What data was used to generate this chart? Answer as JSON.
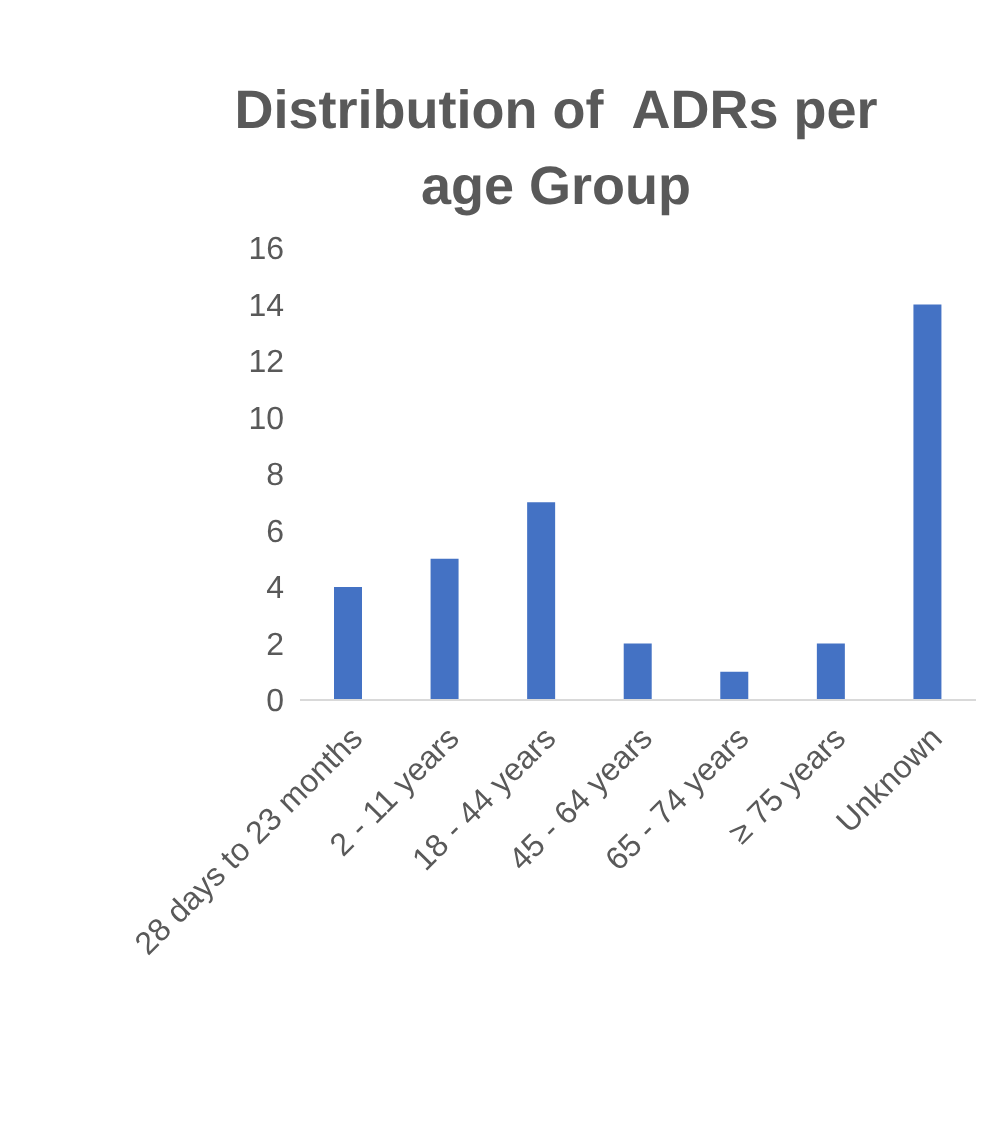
{
  "chart_data": {
    "type": "bar",
    "title": "Distribution of  ADRs per age Group",
    "categories": [
      "28 days to 23 months",
      "2 - 11 years",
      "18 - 44 years",
      "45 - 64 years",
      "65 - 74 years",
      "≥ 75 years",
      "Unknown"
    ],
    "values": [
      4,
      5,
      7,
      2,
      1,
      2,
      14
    ],
    "color": "#4472c4",
    "ylim": [
      0,
      16
    ],
    "yticks": [
      0,
      2,
      4,
      6,
      8,
      10,
      12,
      14,
      16
    ],
    "grid": false,
    "legend": false
  }
}
